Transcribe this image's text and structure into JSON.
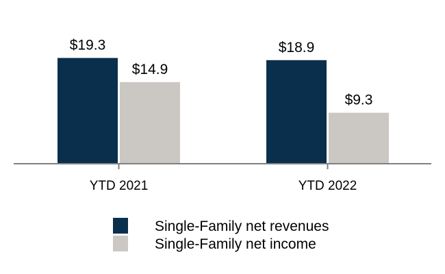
{
  "chart_data": {
    "type": "bar",
    "categories": [
      "YTD 2021",
      "YTD 2022"
    ],
    "series": [
      {
        "name": "Single-Family net revenues",
        "values": [
          19.3,
          18.9
        ],
        "labels": [
          "$19.3",
          "$18.9"
        ],
        "color": "#0a2f4d"
      },
      {
        "name": "Single-Family net income",
        "values": [
          14.9,
          9.3
        ],
        "labels": [
          "$14.9",
          "$9.3"
        ],
        "color": "#cbc8c4"
      }
    ],
    "ylim": [
      0,
      20
    ],
    "grid": false,
    "legend_position": "bottom-center",
    "axis_color": "#808080"
  }
}
